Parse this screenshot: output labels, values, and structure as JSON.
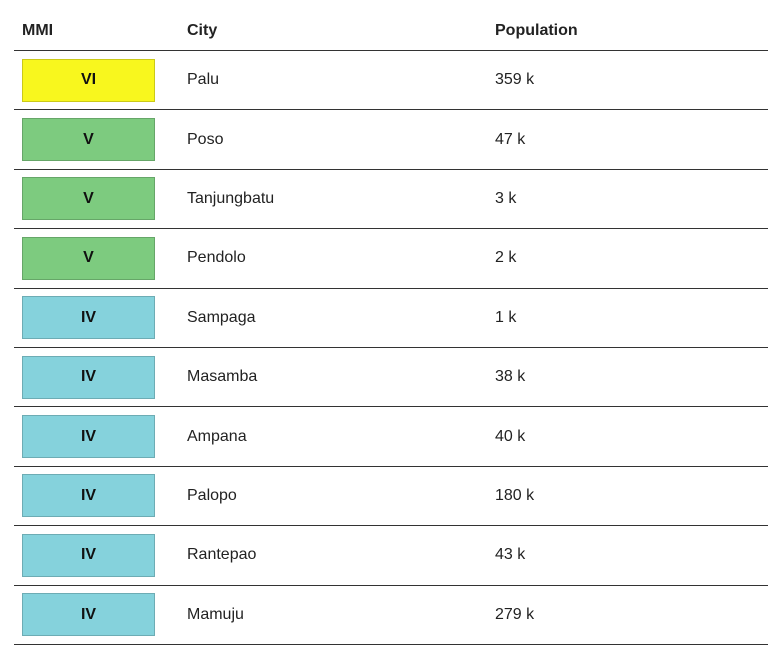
{
  "table": {
    "header": [
      "MMI",
      "City",
      "Population"
    ],
    "rows": [
      {
        "mmi": "VI",
        "color": "#f8f71e",
        "city": "Palu",
        "population": "359 k"
      },
      {
        "mmi": "V",
        "color": "#7dcb7f",
        "city": "Poso",
        "population": "47 k"
      },
      {
        "mmi": "V",
        "color": "#7dcb7f",
        "city": "Tanjungbatu",
        "population": "3 k"
      },
      {
        "mmi": "V",
        "color": "#7dcb7f",
        "city": "Pendolo",
        "population": "2 k"
      },
      {
        "mmi": "IV",
        "color": "#85d2dc",
        "city": "Sampaga",
        "population": "1 k"
      },
      {
        "mmi": "IV",
        "color": "#85d2dc",
        "city": "Masamba",
        "population": "38 k"
      },
      {
        "mmi": "IV",
        "color": "#85d2dc",
        "city": "Ampana",
        "population": "40 k"
      },
      {
        "mmi": "IV",
        "color": "#85d2dc",
        "city": "Palopo",
        "population": "180 k"
      },
      {
        "mmi": "IV",
        "color": "#85d2dc",
        "city": "Rantepao",
        "population": "43 k"
      },
      {
        "mmi": "IV",
        "color": "#85d2dc",
        "city": "Mamuju",
        "population": "279 k"
      }
    ]
  }
}
